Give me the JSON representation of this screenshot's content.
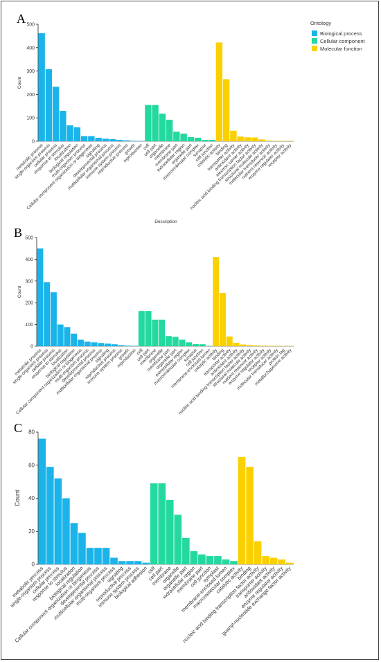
{
  "colors": {
    "Biological process": "#1ab4ea",
    "Cellular component": "#23d9a0",
    "Molecular function": "#fbd000",
    "axis": "#222222",
    "grid": "#eeeeee"
  },
  "legend": {
    "title": "Ontology",
    "items": [
      "Biological process",
      "Cellular component",
      "Molecular function"
    ]
  },
  "chart_data": [
    {
      "panel": "A",
      "type": "bar",
      "ylabel": "Count",
      "xlabel": "Description",
      "ylim": [
        0,
        500
      ],
      "yticks": [
        0,
        100,
        200,
        300,
        400,
        500
      ],
      "categories": [
        "metabolic process",
        "single-organism process",
        "cellular process",
        "response to stimulus",
        "localization",
        "biological regulation",
        "multi-organism process",
        "Cellular component organization or biogenesis",
        "signaling",
        "developmental process",
        "multicellular organismal process",
        "immune system process",
        "reproductive process",
        "growth",
        "reproduction",
        "cell",
        "cell part",
        "organelle",
        "membrane",
        "membrane part",
        "extracellular region",
        "organelle part",
        "macromolecular complex",
        "synapse",
        "cell junction",
        "catalytic activity",
        "binding",
        "transporter activity",
        "antioxidant activity",
        "electron carrier activity",
        "nucleic acid binding transcription factor activity",
        "structural molecule activity",
        "molecular transducer activity",
        "nutrient reservoir activity",
        "enzyme regulator activity",
        "receptor activity"
      ],
      "groups": [
        "Biological process",
        "Biological process",
        "Biological process",
        "Biological process",
        "Biological process",
        "Biological process",
        "Biological process",
        "Biological process",
        "Biological process",
        "Biological process",
        "Biological process",
        "Biological process",
        "Biological process",
        "Biological process",
        "Biological process",
        "Cellular component",
        "Cellular component",
        "Cellular component",
        "Cellular component",
        "Cellular component",
        "Cellular component",
        "Cellular component",
        "Cellular component",
        "Cellular component",
        "Cellular component",
        "Molecular function",
        "Molecular function",
        "Molecular function",
        "Molecular function",
        "Molecular function",
        "Molecular function",
        "Molecular function",
        "Molecular function",
        "Molecular function",
        "Molecular function",
        "Molecular function"
      ],
      "values": [
        462,
        308,
        233,
        130,
        68,
        60,
        22,
        22,
        15,
        11,
        9,
        6,
        4,
        2,
        1,
        155,
        155,
        118,
        92,
        41,
        33,
        18,
        15,
        6,
        6,
        422,
        265,
        45,
        20,
        17,
        16,
        8,
        3,
        2,
        2,
        2
      ]
    },
    {
      "panel": "B",
      "type": "bar",
      "ylabel": "Count",
      "ylim": [
        0,
        500
      ],
      "yticks": [
        0,
        100,
        200,
        300,
        400,
        500
      ],
      "categories": [
        "metabolic process",
        "single-organism process",
        "cellular process",
        "response to stimulus",
        "localization",
        "biological regulation",
        "Cellular component organization or biogenesis",
        "multi-organism process",
        "developmental process",
        "multicellular organismal process",
        "signaling",
        "reproductive process",
        "immune system process",
        "growth",
        "reproduction",
        "cell",
        "cell part",
        "membrane",
        "organelle",
        "membrane part",
        "organelle part",
        "extracellular region",
        "macromolecular complex",
        "synapse",
        "cell junction",
        "membrane-enclosed lumen",
        "catalytic activity",
        "binding",
        "transporter activity",
        "antioxidant activity",
        "nucleic acid binding transcription factor activity",
        "structural molecule activity",
        "nutrient reservoir activity",
        "enzyme regulator activity",
        "receptor activity",
        "molecular transducer activity",
        "protein tag",
        "metallochaperone activity"
      ],
      "groups": [
        "Biological process",
        "Biological process",
        "Biological process",
        "Biological process",
        "Biological process",
        "Biological process",
        "Biological process",
        "Biological process",
        "Biological process",
        "Biological process",
        "Biological process",
        "Biological process",
        "Biological process",
        "Biological process",
        "Biological process",
        "Cellular component",
        "Cellular component",
        "Cellular component",
        "Cellular component",
        "Cellular component",
        "Cellular component",
        "Cellular component",
        "Cellular component",
        "Cellular component",
        "Cellular component",
        "Cellular component",
        "Molecular function",
        "Molecular function",
        "Molecular function",
        "Molecular function",
        "Molecular function",
        "Molecular function",
        "Molecular function",
        "Molecular function",
        "Molecular function",
        "Molecular function",
        "Molecular function",
        "Molecular function"
      ],
      "values": [
        450,
        295,
        248,
        100,
        88,
        58,
        30,
        21,
        18,
        15,
        12,
        9,
        5,
        3,
        2,
        162,
        162,
        122,
        122,
        47,
        43,
        30,
        18,
        10,
        9,
        2,
        410,
        245,
        45,
        16,
        8,
        5,
        4,
        3,
        2,
        2,
        1,
        1
      ]
    },
    {
      "panel": "C",
      "type": "bar",
      "ylabel": "Count",
      "ylim": [
        0,
        80
      ],
      "yticks": [
        0,
        20,
        40,
        60,
        80
      ],
      "categories": [
        "metabolic process",
        "single-organism process",
        "cellular process",
        "response to stimulus",
        "localization",
        "biological regulation",
        "Cellular component organization or biogenesis",
        "developmental process",
        "multicellular organismal process",
        "multi-organism process",
        "signaling",
        "reproductive process",
        "immune system process",
        "biological adhesion",
        "cell",
        "cell part",
        "membrane",
        "organelle",
        "organelle part",
        "extracellular region",
        "membrane part",
        "cell junction",
        "symplast",
        "membrane-enclosed lumen",
        "macromolecular complex",
        "catalytic activity",
        "binding",
        "nucleic acid binding transcription factor activity",
        "transporter activity",
        "antioxidant activity",
        "enzyme regulator activity",
        "guanyl-nucleotide exchange factor activity"
      ],
      "groups": [
        "Biological process",
        "Biological process",
        "Biological process",
        "Biological process",
        "Biological process",
        "Biological process",
        "Biological process",
        "Biological process",
        "Biological process",
        "Biological process",
        "Biological process",
        "Biological process",
        "Biological process",
        "Biological process",
        "Cellular component",
        "Cellular component",
        "Cellular component",
        "Cellular component",
        "Cellular component",
        "Cellular component",
        "Cellular component",
        "Cellular component",
        "Cellular component",
        "Cellular component",
        "Cellular component",
        "Molecular function",
        "Molecular function",
        "Molecular function",
        "Molecular function",
        "Molecular function",
        "Molecular function",
        "Molecular function"
      ],
      "values": [
        76,
        59,
        52,
        40,
        25,
        19,
        10,
        10,
        10,
        4,
        2,
        2,
        2,
        1,
        49,
        49,
        39,
        30,
        16,
        8,
        6,
        5,
        5,
        3,
        2,
        65,
        59,
        14,
        5,
        4,
        3,
        1
      ]
    }
  ]
}
